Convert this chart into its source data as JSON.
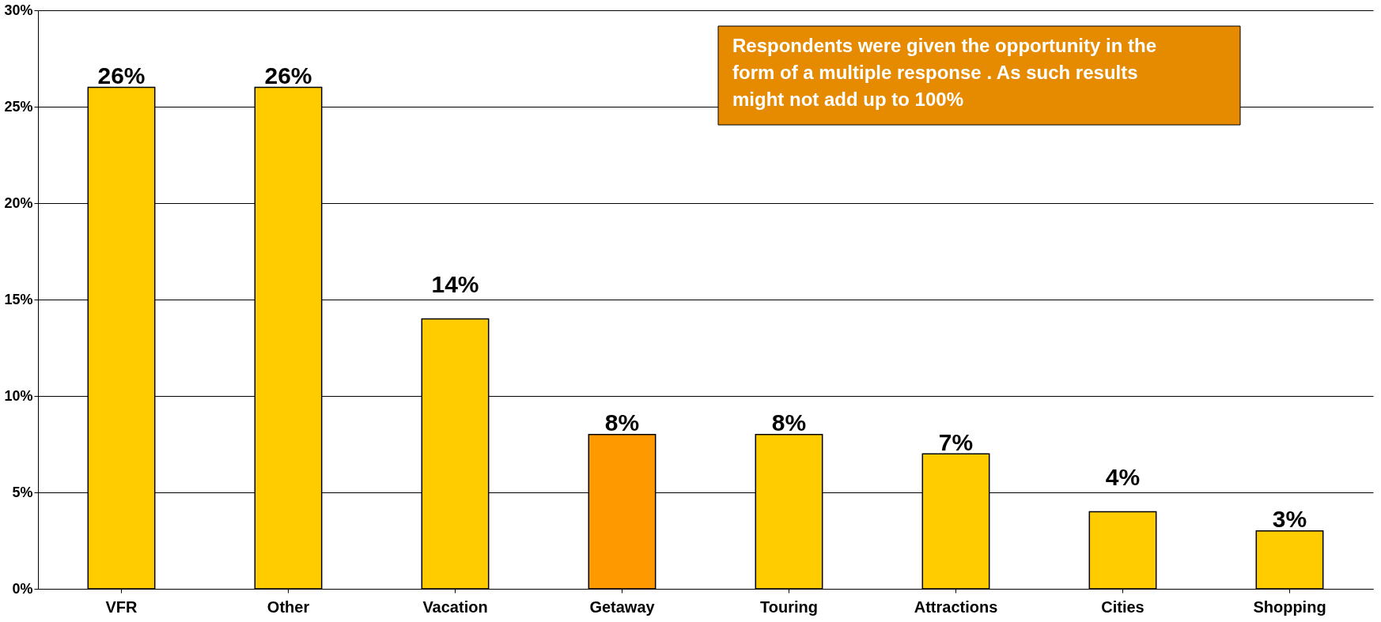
{
  "chart_data": {
    "type": "bar",
    "categories": [
      "VFR",
      "Other",
      "Vacation",
      "Getaway",
      "Touring",
      "Attractions",
      "Cities",
      "Shopping"
    ],
    "values": [
      26,
      26,
      14,
      8,
      8,
      7,
      4,
      3
    ],
    "colors": [
      "#ffcc00",
      "#ffcc00",
      "#ffcc00",
      "#ff9900",
      "#ffcc00",
      "#ffcc00",
      "#ffcc00",
      "#ffcc00"
    ],
    "value_labels": [
      "26%",
      "26%",
      "14%",
      "8%",
      "8%",
      "7%",
      "4%",
      "3%"
    ],
    "ylim": [
      0,
      30
    ],
    "yticks": [
      {
        "value": 0,
        "label": "0%"
      },
      {
        "value": 5,
        "label": "5%"
      },
      {
        "value": 10,
        "label": "10%"
      },
      {
        "value": 15,
        "label": "15%"
      },
      {
        "value": 20,
        "label": "20%"
      },
      {
        "value": 25,
        "label": "25%"
      },
      {
        "value": 30,
        "label": "30%"
      }
    ],
    "grid": "y",
    "annotations": [
      "Respondents were given the opportunity in the form of a multiple response . As such results might not add up to 100%"
    ]
  }
}
